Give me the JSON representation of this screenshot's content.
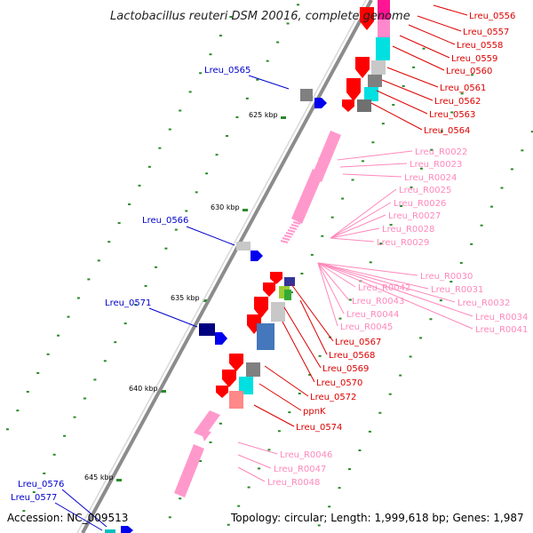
{
  "title": "Lactobacillus reuteri DSM 20016, complete genome",
  "footer": {
    "accession": "Accession: NC_009513",
    "topology": "Topology: circular; Length: 1,999,618 bp; Genes: 1,987"
  },
  "colors": {
    "backbone": "#8c8c8c",
    "forward_gene_label": "#0000cc",
    "reverse_gene_label": "#dd0000",
    "rna_label": "#ff88bb",
    "tick": "#2a8a2a"
  },
  "ruler_labels": [
    "625 kbp",
    "630 kbp",
    "635 kbp",
    "640 kbp",
    "645 kbp"
  ],
  "left_labels": [
    "Lreu_0565",
    "Lreu_0566",
    "Lreu_0571",
    "Lreu_0576",
    "Lreu_0577"
  ],
  "right_labels_red_top": [
    "Lreu_0556",
    "Lreu_0557",
    "Lreu_0558",
    "Lreu_0559",
    "Lreu_0560",
    "Lreu_0561",
    "Lreu_0562",
    "Lreu_0563",
    "Lreu_0564"
  ],
  "rna_labels_1": [
    "Lreu_R0022",
    "Lreu_R0023",
    "Lreu_R0024",
    "Lreu_R0025",
    "Lreu_R0026",
    "Lreu_R0027",
    "Lreu_R0028",
    "Lreu_R0029"
  ],
  "rna_labels_2": [
    "Lreu_R0030",
    "Lreu_R0042",
    "Lreu_R0031",
    "Lreu_R0043",
    "Lreu_R0032",
    "Lreu_R0044",
    "Lreu_R0034",
    "Lreu_R0045",
    "Lreu_R0041"
  ],
  "right_labels_red_mid": [
    "Lreu_0567",
    "Lreu_0568",
    "Lreu_0569",
    "Lreu_0570",
    "Lreu_0572",
    "ppnK",
    "Lreu_0574"
  ],
  "rna_labels_3": [
    "Lreu_R0046",
    "Lreu_R0047",
    "Lreu_R0048"
  ]
}
